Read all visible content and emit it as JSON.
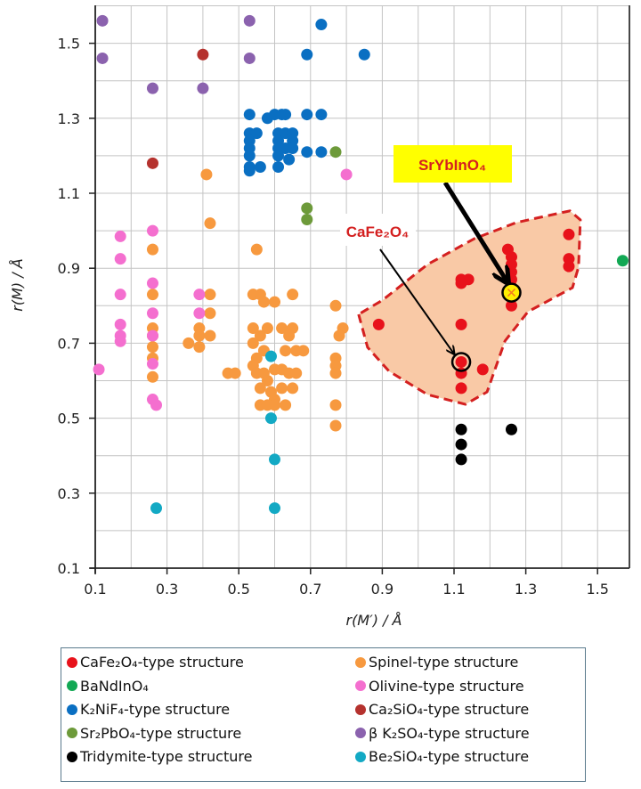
{
  "chart_data": {
    "type": "scatter",
    "xlabel": "r(M′) / Å",
    "ylabel": "r(M) / Å",
    "xlim": [
      0.1,
      1.6
    ],
    "ylim": [
      0.1,
      1.6
    ],
    "xticks": [
      "0.1",
      "0.3",
      "0.5",
      "0.7",
      "0.9",
      "1.1",
      "1.3",
      "1.5"
    ],
    "yticks": [
      "0.1",
      "0.3",
      "0.5",
      "0.7",
      "0.9",
      "1.1",
      "1.3",
      "1.5"
    ],
    "grid": true,
    "grid_step": 0.1,
    "legend_placement": "bottom",
    "series": [
      {
        "name": "CaFe₂O₄-type structure",
        "color": "#e8121b",
        "points": [
          [
            0.89,
            0.75
          ],
          [
            1.12,
            0.87
          ],
          [
            1.14,
            0.87
          ],
          [
            1.12,
            0.86
          ],
          [
            1.12,
            0.75
          ],
          [
            1.12,
            0.65
          ],
          [
            1.12,
            0.62
          ],
          [
            1.12,
            0.58
          ],
          [
            1.18,
            0.63
          ],
          [
            1.25,
            0.95
          ],
          [
            1.26,
            0.93
          ],
          [
            1.26,
            0.91
          ],
          [
            1.26,
            0.89
          ],
          [
            1.26,
            0.87
          ],
          [
            1.26,
            0.85
          ],
          [
            1.26,
            0.8
          ],
          [
            1.42,
            0.99
          ],
          [
            1.42,
            0.925
          ],
          [
            1.42,
            0.905
          ]
        ]
      },
      {
        "name": "BaNdInO₄",
        "color": "#12a854",
        "points": [
          [
            1.57,
            0.92
          ]
        ]
      },
      {
        "name": "K₂NiF₄-type structure",
        "color": "#0a6fc2",
        "points": [
          [
            0.73,
            1.55
          ],
          [
            0.69,
            1.47
          ],
          [
            0.85,
            1.47
          ],
          [
            0.53,
            1.31
          ],
          [
            0.58,
            1.3
          ],
          [
            0.6,
            1.31
          ],
          [
            0.62,
            1.31
          ],
          [
            0.63,
            1.31
          ],
          [
            0.69,
            1.31
          ],
          [
            0.73,
            1.31
          ],
          [
            0.53,
            1.26
          ],
          [
            0.55,
            1.26
          ],
          [
            0.61,
            1.26
          ],
          [
            0.63,
            1.26
          ],
          [
            0.65,
            1.26
          ],
          [
            0.53,
            1.24
          ],
          [
            0.61,
            1.24
          ],
          [
            0.65,
            1.24
          ],
          [
            0.53,
            1.22
          ],
          [
            0.61,
            1.22
          ],
          [
            0.63,
            1.22
          ],
          [
            0.65,
            1.22
          ],
          [
            0.53,
            1.2
          ],
          [
            0.61,
            1.2
          ],
          [
            0.64,
            1.19
          ],
          [
            0.69,
            1.21
          ],
          [
            0.73,
            1.21
          ],
          [
            0.53,
            1.17
          ],
          [
            0.56,
            1.17
          ],
          [
            0.61,
            1.17
          ],
          [
            0.53,
            1.16
          ]
        ]
      },
      {
        "name": "Sr₂PbO₄-type structure",
        "color": "#6d9a3a",
        "points": [
          [
            0.77,
            1.21
          ],
          [
            0.69,
            1.06
          ],
          [
            0.69,
            1.03
          ]
        ]
      },
      {
        "name": "Tridymite-type structure",
        "color": "#000000",
        "points": [
          [
            1.12,
            0.47
          ],
          [
            1.12,
            0.43
          ],
          [
            1.12,
            0.39
          ],
          [
            1.26,
            0.47
          ]
        ]
      },
      {
        "name": "Spinel-type structure",
        "color": "#f7993f",
        "points": [
          [
            0.41,
            1.15
          ],
          [
            0.42,
            1.02
          ],
          [
            0.26,
            0.95
          ],
          [
            0.55,
            0.95
          ],
          [
            0.26,
            0.83
          ],
          [
            0.42,
            0.83
          ],
          [
            0.54,
            0.83
          ],
          [
            0.56,
            0.83
          ],
          [
            0.65,
            0.83
          ],
          [
            0.57,
            0.81
          ],
          [
            0.6,
            0.81
          ],
          [
            0.77,
            0.8
          ],
          [
            0.42,
            0.78
          ],
          [
            0.26,
            0.74
          ],
          [
            0.39,
            0.74
          ],
          [
            0.54,
            0.74
          ],
          [
            0.58,
            0.74
          ],
          [
            0.62,
            0.74
          ],
          [
            0.65,
            0.74
          ],
          [
            0.26,
            0.72
          ],
          [
            0.39,
            0.72
          ],
          [
            0.42,
            0.72
          ],
          [
            0.56,
            0.72
          ],
          [
            0.64,
            0.72
          ],
          [
            0.79,
            0.74
          ],
          [
            0.78,
            0.72
          ],
          [
            0.26,
            0.69
          ],
          [
            0.36,
            0.7
          ],
          [
            0.39,
            0.69
          ],
          [
            0.54,
            0.7
          ],
          [
            0.26,
            0.66
          ],
          [
            0.55,
            0.66
          ],
          [
            0.57,
            0.68
          ],
          [
            0.63,
            0.68
          ],
          [
            0.66,
            0.68
          ],
          [
            0.68,
            0.68
          ],
          [
            0.77,
            0.66
          ],
          [
            0.77,
            0.64
          ],
          [
            0.77,
            0.62
          ],
          [
            0.26,
            0.61
          ],
          [
            0.47,
            0.62
          ],
          [
            0.49,
            0.62
          ],
          [
            0.54,
            0.64
          ],
          [
            0.55,
            0.62
          ],
          [
            0.57,
            0.62
          ],
          [
            0.58,
            0.6
          ],
          [
            0.6,
            0.63
          ],
          [
            0.62,
            0.63
          ],
          [
            0.64,
            0.62
          ],
          [
            0.66,
            0.62
          ],
          [
            0.56,
            0.58
          ],
          [
            0.59,
            0.57
          ],
          [
            0.62,
            0.58
          ],
          [
            0.65,
            0.58
          ],
          [
            0.6,
            0.55
          ],
          [
            0.56,
            0.535
          ],
          [
            0.58,
            0.535
          ],
          [
            0.6,
            0.535
          ],
          [
            0.63,
            0.535
          ],
          [
            0.77,
            0.535
          ],
          [
            0.77,
            0.48
          ]
        ]
      },
      {
        "name": "Olivine-type structure",
        "color": "#f46fcf",
        "points": [
          [
            0.8,
            1.15
          ],
          [
            0.26,
            1.0
          ],
          [
            0.17,
            0.985
          ],
          [
            0.17,
            0.925
          ],
          [
            0.26,
            0.86
          ],
          [
            0.17,
            0.83
          ],
          [
            0.39,
            0.83
          ],
          [
            0.26,
            0.78
          ],
          [
            0.39,
            0.78
          ],
          [
            0.17,
            0.75
          ],
          [
            0.17,
            0.72
          ],
          [
            0.17,
            0.705
          ],
          [
            0.26,
            0.72
          ],
          [
            0.11,
            0.63
          ],
          [
            0.26,
            0.645
          ],
          [
            0.26,
            0.55
          ],
          [
            0.27,
            0.535
          ]
        ]
      },
      {
        "name": "Ca₂SiO₄-type structure",
        "color": "#b5322e",
        "points": [
          [
            0.4,
            1.47
          ],
          [
            0.26,
            1.18
          ]
        ]
      },
      {
        "name": "β K₂SO₄-type structure",
        "color": "#8b62ae",
        "points": [
          [
            0.12,
            1.56
          ],
          [
            0.12,
            1.46
          ],
          [
            0.26,
            1.38
          ],
          [
            0.4,
            1.38
          ],
          [
            0.53,
            1.56
          ],
          [
            0.53,
            1.46
          ]
        ]
      },
      {
        "name": "Be₂SiO₄-type structure",
        "color": "#13a9c4",
        "points": [
          [
            0.59,
            0.665
          ],
          [
            0.59,
            0.5
          ],
          [
            0.6,
            0.39
          ],
          [
            0.27,
            0.26
          ],
          [
            0.6,
            0.26
          ]
        ]
      }
    ],
    "region": {
      "fill": "#f9c9a6",
      "stroke": "#d42020",
      "points": [
        [
          0.834,
          0.777
        ],
        [
          0.859,
          0.689
        ],
        [
          0.919,
          0.625
        ],
        [
          1.026,
          0.563
        ],
        [
          1.132,
          0.537
        ],
        [
          1.192,
          0.57
        ],
        [
          1.242,
          0.706
        ],
        [
          1.306,
          0.784
        ],
        [
          1.43,
          0.848
        ],
        [
          1.447,
          0.903
        ],
        [
          1.452,
          1.029
        ],
        [
          1.423,
          1.053
        ],
        [
          1.274,
          1.022
        ],
        [
          1.157,
          0.979
        ],
        [
          1.026,
          0.91
        ],
        [
          0.901,
          0.815
        ]
      ]
    },
    "annotations": [
      {
        "text": "SrYbInO₄",
        "point": [
          1.26,
          0.835
        ],
        "marker_color": "#ffee00",
        "box_color": "#ffff00",
        "text_color": "#d42020"
      },
      {
        "text": "CaFe₂O₄",
        "point": [
          1.12,
          0.65
        ],
        "text_color": "#d42020"
      }
    ]
  }
}
